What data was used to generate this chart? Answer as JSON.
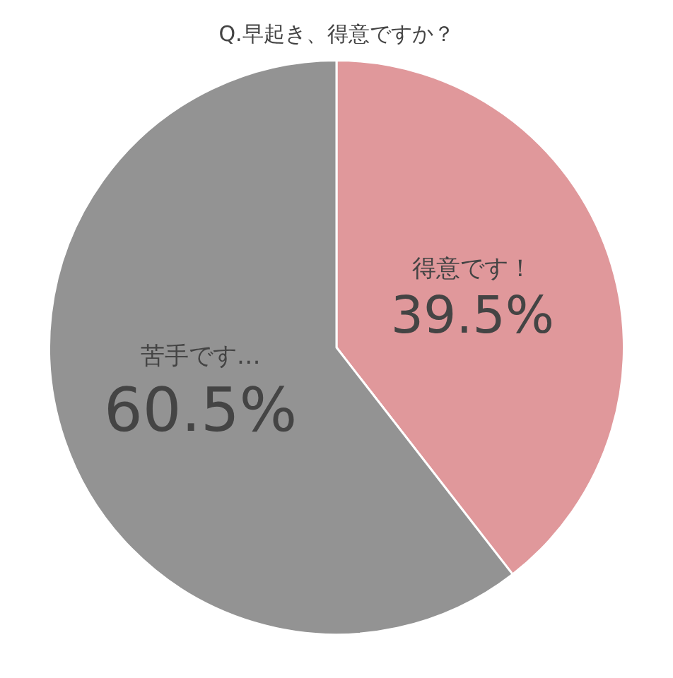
{
  "chart_data": {
    "type": "pie",
    "title": "Q.早起き、得意ですか？",
    "categories": [
      "得意です！",
      "苦手です…"
    ],
    "values": [
      39.5,
      60.5
    ],
    "colors": [
      "#e0989b",
      "#939393"
    ],
    "value_labels": [
      "39.5%",
      "60.5%"
    ],
    "legend": false
  }
}
